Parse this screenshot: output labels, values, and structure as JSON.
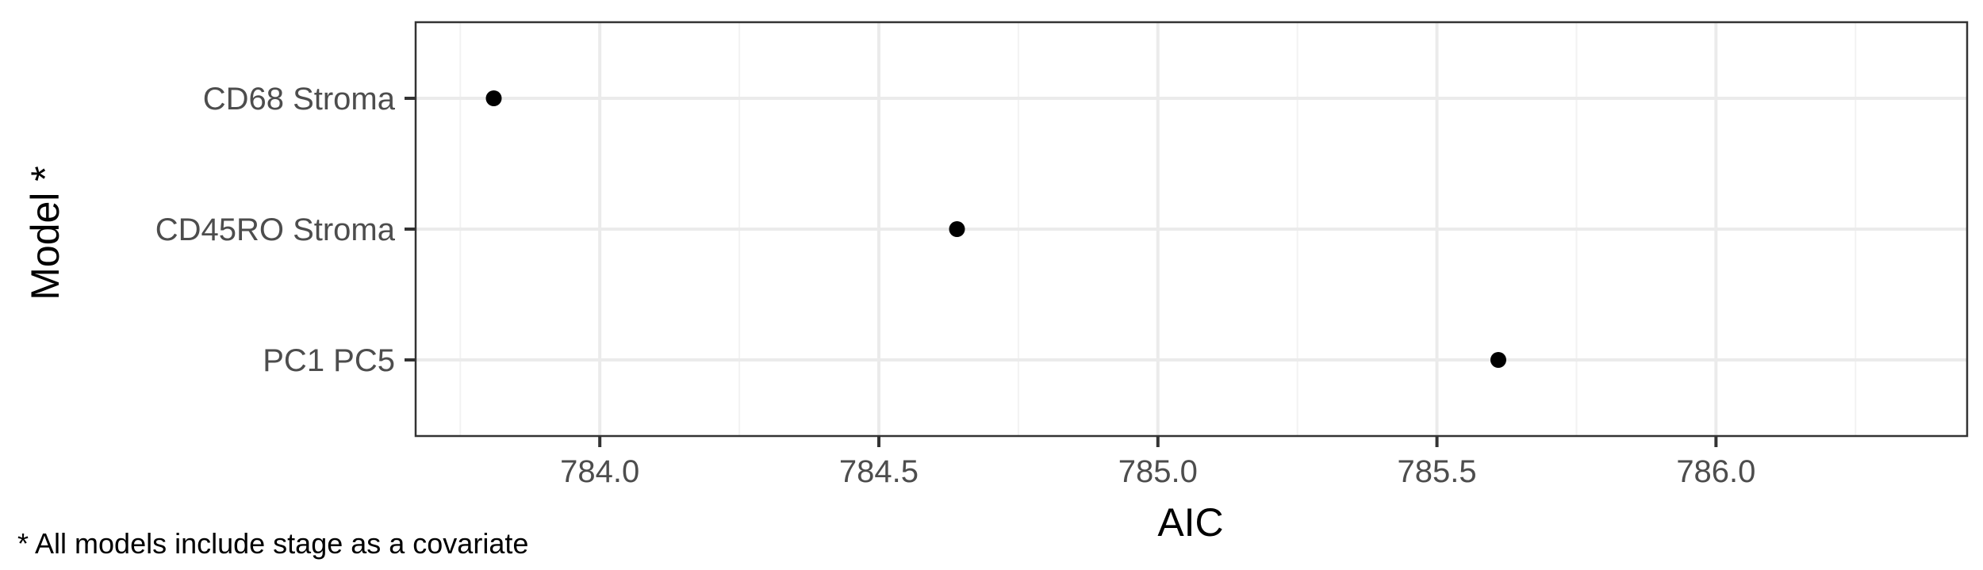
{
  "chart_data": {
    "type": "scatter",
    "xlabel": "AIC",
    "ylabel": "Model *",
    "categories": [
      "CD68 Stroma",
      "CD45RO Stroma",
      "PC1  PC5"
    ],
    "values": [
      783.81,
      784.64,
      785.61
    ],
    "xlim": [
      783.67,
      786.45
    ],
    "x_ticks": [
      784.0,
      784.5,
      785.0,
      785.5,
      786.0
    ],
    "x_tick_labels": [
      "784.0",
      "784.5",
      "785.0",
      "785.5",
      "786.0"
    ],
    "x_minor_ticks": [
      783.75,
      784.25,
      784.75,
      785.25,
      785.75,
      786.25
    ],
    "grid": true,
    "legend": "none",
    "caption": "* All models include stage as a covariate",
    "colors": {
      "point": "#000000",
      "major_grid": "#ebebeb",
      "minor_grid": "#f2f2f2",
      "panel_border": "#333333",
      "tick_text": "#4d4d4d"
    }
  }
}
